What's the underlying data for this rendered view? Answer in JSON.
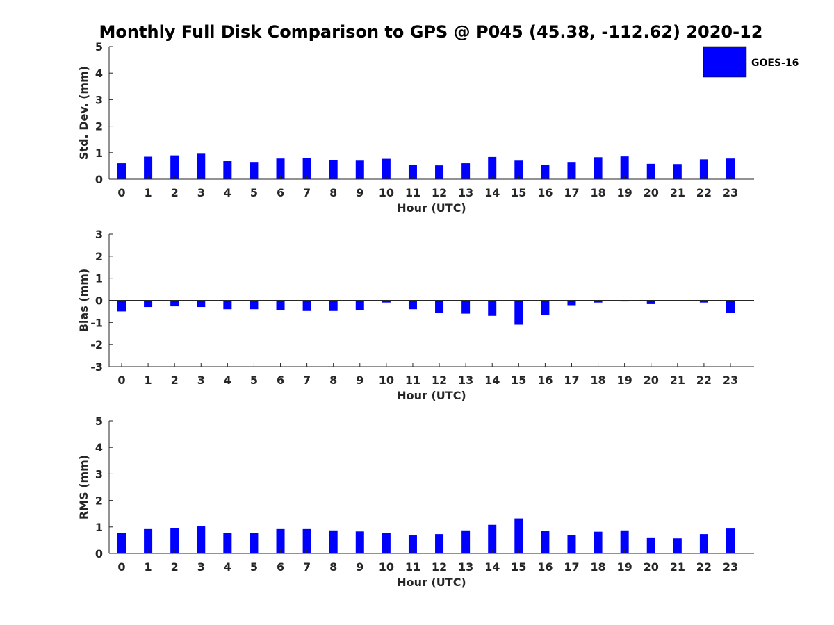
{
  "chart_data": [
    {
      "type": "bar",
      "title": "Monthly Full Disk Comparison to GPS @ P045 (45.38, -112.62) 2020-12",
      "xlabel": "Hour (UTC)",
      "ylabel": "Std. Dev. (mm)",
      "ylim": [
        0,
        5
      ],
      "yticks": [
        "0",
        "1",
        "2",
        "3",
        "4",
        "5"
      ],
      "categories": [
        "0",
        "1",
        "2",
        "3",
        "4",
        "5",
        "6",
        "7",
        "8",
        "9",
        "10",
        "11",
        "12",
        "13",
        "14",
        "15",
        "16",
        "17",
        "18",
        "19",
        "20",
        "21",
        "22",
        "23"
      ],
      "series": [
        {
          "name": "GOES-16",
          "values": [
            0.6,
            0.85,
            0.9,
            0.96,
            0.68,
            0.65,
            0.78,
            0.8,
            0.72,
            0.7,
            0.77,
            0.55,
            0.52,
            0.6,
            0.84,
            0.7,
            0.55,
            0.65,
            0.83,
            0.86,
            0.58,
            0.57,
            0.75,
            0.78
          ]
        }
      ],
      "legend": "top-right"
    },
    {
      "type": "bar",
      "xlabel": "Hour (UTC)",
      "ylabel": "Bias (mm)",
      "ylim": [
        -3,
        3
      ],
      "yticks": [
        "-3",
        "-2",
        "-1",
        "0",
        "1",
        "2",
        "3"
      ],
      "categories": [
        "0",
        "1",
        "2",
        "3",
        "4",
        "5",
        "6",
        "7",
        "8",
        "9",
        "10",
        "11",
        "12",
        "13",
        "14",
        "15",
        "16",
        "17",
        "18",
        "19",
        "20",
        "21",
        "22",
        "23"
      ],
      "series": [
        {
          "name": "GOES-16",
          "values": [
            -0.5,
            -0.3,
            -0.27,
            -0.3,
            -0.4,
            -0.4,
            -0.45,
            -0.48,
            -0.48,
            -0.45,
            -0.1,
            -0.4,
            -0.55,
            -0.6,
            -0.7,
            -1.1,
            -0.67,
            -0.22,
            -0.1,
            -0.05,
            -0.17,
            -0.02,
            -0.1,
            -0.55
          ]
        }
      ]
    },
    {
      "type": "bar",
      "xlabel": "Hour (UTC)",
      "ylabel": "RMS (mm)",
      "ylim": [
        0,
        5
      ],
      "yticks": [
        "0",
        "1",
        "2",
        "3",
        "4",
        "5"
      ],
      "categories": [
        "0",
        "1",
        "2",
        "3",
        "4",
        "5",
        "6",
        "7",
        "8",
        "9",
        "10",
        "11",
        "12",
        "13",
        "14",
        "15",
        "16",
        "17",
        "18",
        "19",
        "20",
        "21",
        "22",
        "23"
      ],
      "series": [
        {
          "name": "GOES-16",
          "values": [
            0.78,
            0.92,
            0.95,
            1.02,
            0.78,
            0.78,
            0.92,
            0.92,
            0.87,
            0.83,
            0.78,
            0.68,
            0.73,
            0.87,
            1.08,
            1.32,
            0.86,
            0.68,
            0.82,
            0.87,
            0.58,
            0.57,
            0.73,
            0.94
          ]
        }
      ]
    }
  ],
  "legend": {
    "label": "GOES-16"
  },
  "colors": {
    "bar": "#0000ff",
    "axis": "#262626"
  }
}
